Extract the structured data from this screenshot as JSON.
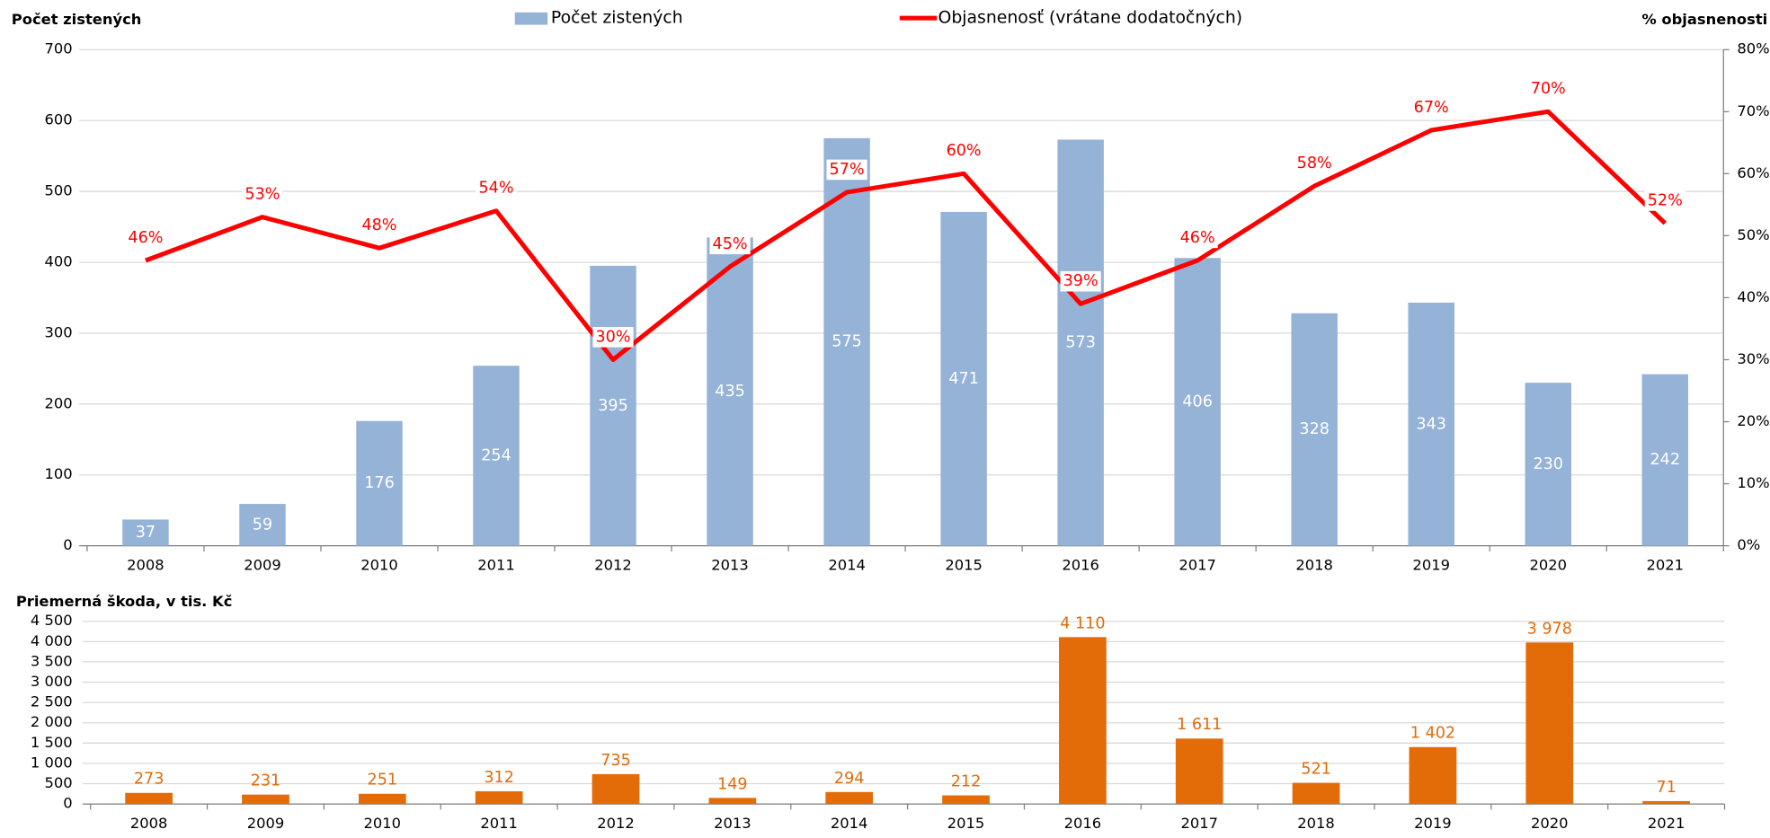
{
  "chart_data": [
    {
      "type": "combo",
      "y_label": "Počet zistených",
      "y2_label": "% objasnenosti",
      "categories": [
        "2008",
        "2009",
        "2010",
        "2011",
        "2012",
        "2013",
        "2014",
        "2015",
        "2016",
        "2017",
        "2018",
        "2019",
        "2020",
        "2021"
      ],
      "series": [
        {
          "name": "Počet zistených",
          "type": "bar",
          "color": "#95b3d7",
          "values": [
            37,
            59,
            176,
            254,
            395,
            435,
            575,
            471,
            573,
            406,
            328,
            343,
            230,
            242
          ]
        },
        {
          "name": "Objasnenosť (vrátane dodatočných)",
          "type": "line",
          "axis": "y2",
          "color": "#ff0000",
          "values": [
            46,
            53,
            48,
            54,
            30,
            45,
            57,
            60,
            39,
            46,
            58,
            67,
            70,
            52
          ],
          "value_labels": [
            "46%",
            "53%",
            "48%",
            "54%",
            "30%",
            "45%",
            "57%",
            "60%",
            "39%",
            "46%",
            "58%",
            "67%",
            "70%",
            "52%"
          ]
        }
      ],
      "ylim": [
        0,
        700
      ],
      "yticks": [
        0,
        100,
        200,
        300,
        400,
        500,
        600,
        700
      ],
      "y2lim": [
        0,
        80
      ],
      "y2ticks": [
        {
          "value": 0,
          "label": "0%"
        },
        {
          "value": 10,
          "label": "10%"
        },
        {
          "value": 20,
          "label": "20%"
        },
        {
          "value": 30,
          "label": "30%"
        },
        {
          "value": 40,
          "label": "40%"
        },
        {
          "value": 50,
          "label": "50%"
        },
        {
          "value": 60,
          "label": "60%"
        },
        {
          "value": 70,
          "label": "70%"
        },
        {
          "value": 80,
          "label": "80%"
        }
      ],
      "grid": true,
      "legend": "top"
    },
    {
      "type": "bar",
      "y_label": "Priemerná škoda, v tis. Kč",
      "color": "#e36c09",
      "categories": [
        "2008",
        "2009",
        "2010",
        "2011",
        "2012",
        "2013",
        "2014",
        "2015",
        "2016",
        "2017",
        "2018",
        "2019",
        "2020",
        "2021"
      ],
      "values": [
        273,
        231,
        251,
        312,
        735,
        149,
        294,
        212,
        4110,
        1611,
        521,
        1402,
        3978,
        71
      ],
      "value_labels": [
        "273",
        "231",
        "251",
        "312",
        "735",
        "149",
        "294",
        "212",
        "4 110",
        "1 611",
        "521",
        "1 402",
        "3 978",
        "71"
      ],
      "ylim": [
        0,
        4500
      ],
      "yticks": [
        0,
        500,
        {
          "value": 1000,
          "label": "1 000"
        },
        {
          "value": 1500,
          "label": "1 500"
        },
        {
          "value": 2000,
          "label": "2 000"
        },
        {
          "value": 2500,
          "label": "2 500"
        },
        {
          "value": 3000,
          "label": "3 000"
        },
        {
          "value": 3500,
          "label": "3 500"
        },
        {
          "value": 4000,
          "label": "4 000"
        },
        {
          "value": 4500,
          "label": "4 500"
        }
      ],
      "grid": true
    }
  ]
}
